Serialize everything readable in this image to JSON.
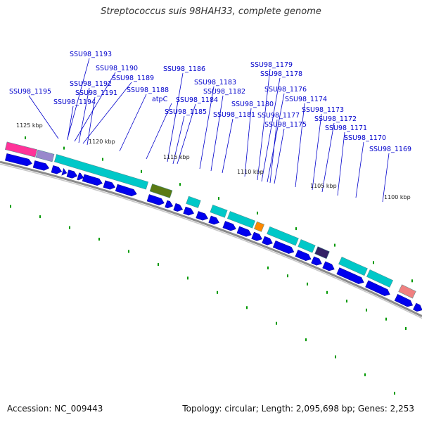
{
  "title": "Streptococcus suis 98HAH33, complete genome",
  "accession_text": "Accession: NC_009443",
  "topology_text": "Topology: circular; Length: 2,095,698 bp; Genes: 2,253",
  "colors": {
    "cds_blue": "#0000ee",
    "cyan_feature": "#00c8c8",
    "olive_feature": "#5a7a14",
    "orange_feature": "#ff8800",
    "pink_feature": "#ff3399",
    "label_blue": "#0000cc",
    "tick_green": "#009900"
  },
  "gene_labels": [
    "SSU98_1193",
    "SSU98_1190",
    "SSU98_1192",
    "SSU98_1189",
    "SSU98_1191",
    "SSU98_1188",
    "SSU98_1186",
    "atpC",
    "SSU98_1195",
    "SSU98_1194",
    "SSU98_1184",
    "SSU98_1185",
    "SSU98_1183",
    "SSU98_1182",
    "SSU98_1181",
    "SSU98_1180",
    "SSU98_1179",
    "SSU98_1178",
    "SSU98_1176",
    "SSU98_1177",
    "SSU98_1175",
    "SSU98_1174",
    "SSU98_1173",
    "SSU98_1172",
    "SSU98_1171",
    "SSU98_1170",
    "SSU98_1169"
  ],
  "position_labels": [
    "1125 kbp",
    "1120 kbp",
    "1115 kbp",
    "1110 kbp",
    "1105 kbp",
    "1100 kbp"
  ]
}
